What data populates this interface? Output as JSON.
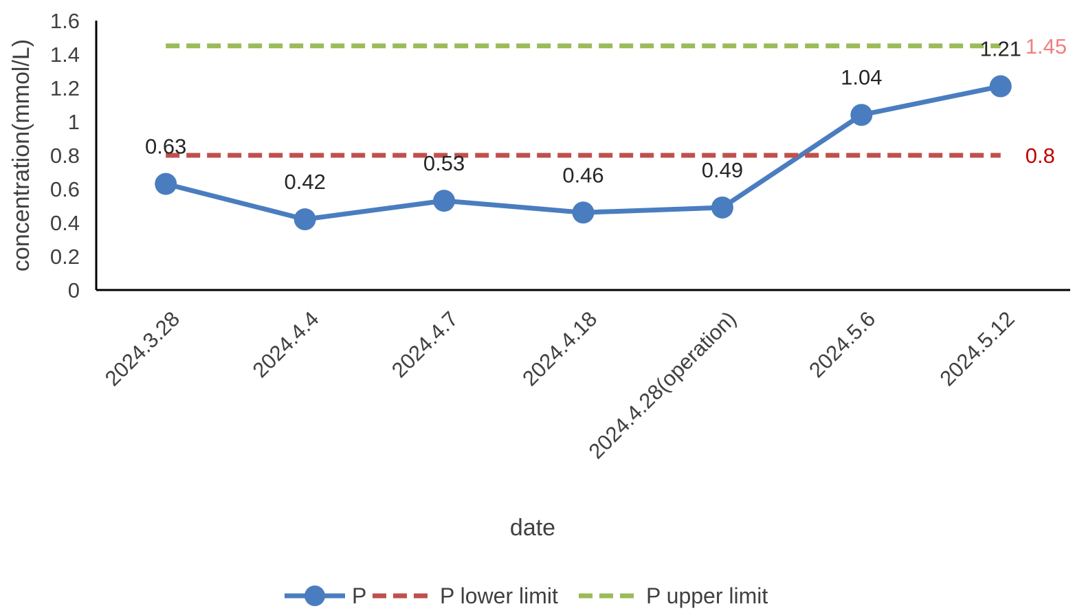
{
  "chart_data": {
    "type": "line",
    "xlabel": "date",
    "ylabel": "concentration(mmol/L)",
    "ylim": [
      0,
      1.6
    ],
    "yticks": [
      "0",
      "0.2",
      "0.4",
      "0.6",
      "0.8",
      "1",
      "1.2",
      "1.4",
      "1.6"
    ],
    "categories": [
      "2024.3.28",
      "2024.4.4",
      "2024.4.7",
      "2024.4.18",
      "2024.4.28(operation)",
      "2024.5.6",
      "2024.5.12"
    ],
    "series": [
      {
        "name": "P",
        "values": [
          0.63,
          0.42,
          0.53,
          0.46,
          0.49,
          1.04,
          1.21
        ],
        "labels": [
          "0.63",
          "0.42",
          "0.53",
          "0.46",
          "0.49",
          "1.04",
          "1.21"
        ],
        "color": "#4a7dbf",
        "style": "solid-with-markers"
      },
      {
        "name": "P lower limit",
        "values": [
          0.8,
          0.8,
          0.8,
          0.8,
          0.8,
          0.8,
          0.8
        ],
        "end_label": "0.8",
        "color": "#c0504d",
        "label_color": "#c00000",
        "style": "dashed"
      },
      {
        "name": "P upper limit",
        "values": [
          1.45,
          1.45,
          1.45,
          1.45,
          1.45,
          1.45,
          1.45
        ],
        "end_label": "1.45",
        "color": "#9bbb59",
        "label_color": "#f08080",
        "style": "dashed"
      }
    ],
    "grid": false,
    "legend_position": "bottom"
  }
}
